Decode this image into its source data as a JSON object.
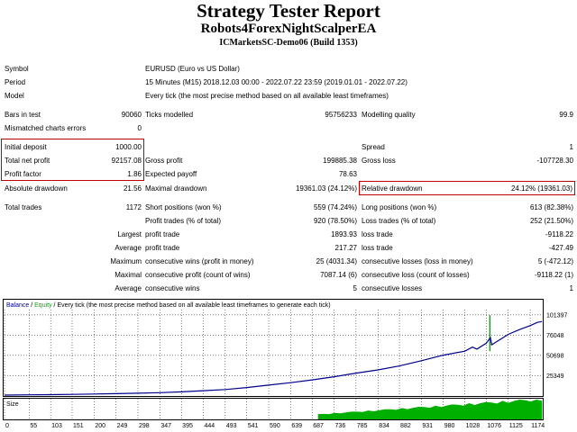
{
  "header": {
    "title": "Strategy Tester Report",
    "ea_name": "Robots4ForexNightScalperEA",
    "account": "ICMarketsSC-Demo06 (Build 1353)"
  },
  "info": {
    "symbol_label": "Symbol",
    "symbol_value": "EURUSD (Euro vs US Dollar)",
    "period_label": "Period",
    "period_value": "15 Minutes (M15) 2018.12.03 00:00 - 2022.07.22 23:59 (2019.01.01 - 2022.07.22)",
    "model_label": "Model",
    "model_value": "Every tick (the most precise method based on all available least timeframes)",
    "bars_label": "Bars in test",
    "bars_value": "90060",
    "ticks_label": "Ticks modelled",
    "ticks_value": "95756233",
    "quality_label": "Modelling quality",
    "quality_value": "99.9",
    "mismatch_label": "Mismatched charts errors",
    "mismatch_value": "0"
  },
  "results": {
    "deposit_label": "Initial deposit",
    "deposit_value": "1000.00",
    "spread_label": "Spread",
    "spread_value": "1",
    "netprofit_label": "Total net profit",
    "netprofit_value": "92157.08",
    "grossprofit_label": "Gross profit",
    "grossprofit_value": "199885.38",
    "grossloss_label": "Gross loss",
    "grossloss_value": "-107728.30",
    "pf_label": "Profit factor",
    "pf_value": "1.86",
    "payoff_label": "Expected payoff",
    "payoff_value": "78.63",
    "absdd_label": "Absolute drawdown",
    "absdd_value": "21.56",
    "maxdd_label": "Maximal drawdown",
    "maxdd_value": "19361.03 (24.12%)",
    "reldd_label": "Relative drawdown",
    "reldd_value": "24.12% (19361.03)"
  },
  "trades": {
    "total_label": "Total trades",
    "total_value": "1172",
    "short_label": "Short positions (won %)",
    "short_value": "559 (74.24%)",
    "long_label": "Long positions (won %)",
    "long_value": "613 (82.38%)",
    "profit_trades_label": "Profit trades (% of total)",
    "profit_trades_value": "920 (78.50%)",
    "loss_trades_label": "Loss trades (% of total)",
    "loss_trades_value": "252 (21.50%)",
    "largest_prefix": "Largest",
    "largest_profit_label": "profit trade",
    "largest_profit_value": "1893.93",
    "largest_loss_label": "loss trade",
    "largest_loss_value": "-9118.22",
    "average_prefix": "Average",
    "average_profit_label": "profit trade",
    "average_profit_value": "217.27",
    "average_loss_label": "loss trade",
    "average_loss_value": "-427.49",
    "maximum_prefix": "Maximum",
    "max_wins_label": "consecutive wins (profit in money)",
    "max_wins_value": "25 (4031.34)",
    "max_losses_label": "consecutive losses (loss in money)",
    "max_losses_value": "5 (-472.12)",
    "maximal_prefix": "Maximal",
    "maxl_profit_label": "consecutive profit (count of wins)",
    "maxl_profit_value": "7087.14 (6)",
    "maxl_loss_label": "consecutive loss (count of losses)",
    "maxl_loss_value": "-9118.22 (1)",
    "avg2_prefix": "Average",
    "avg_wins_label": "consecutive wins",
    "avg_wins_value": "5",
    "avg_losses_label": "consecutive losses",
    "avg_losses_value": "1"
  },
  "chart_data": {
    "type": "line",
    "legend": {
      "balance": "Balance",
      "sep1": " / ",
      "equity": "Equity",
      "sep2": " / ",
      "note": "Every tick (the most precise method based on all available least timeframes to generate each tick)"
    },
    "colors": {
      "balance": "#00008b",
      "equity": "#00b000",
      "size": "#00b000",
      "label": "#000000",
      "grid": "#000000"
    },
    "ylim": [
      1000,
      108000
    ],
    "yticks": [
      101397,
      76048,
      50698,
      25349
    ],
    "xlim": [
      0,
      1200
    ],
    "xticks": [
      0,
      55,
      103,
      151,
      200,
      249,
      298,
      347,
      395,
      444,
      493,
      541,
      590,
      639,
      687,
      736,
      785,
      834,
      882,
      931,
      980,
      1028,
      1076,
      1125,
      1174
    ],
    "balance": [
      {
        "x": 0,
        "y": 1000
      },
      {
        "x": 55,
        "y": 1300
      },
      {
        "x": 103,
        "y": 1600
      },
      {
        "x": 151,
        "y": 1900
      },
      {
        "x": 200,
        "y": 2300
      },
      {
        "x": 249,
        "y": 2800
      },
      {
        "x": 298,
        "y": 3400
      },
      {
        "x": 347,
        "y": 4000
      },
      {
        "x": 395,
        "y": 5000
      },
      {
        "x": 444,
        "y": 6500
      },
      {
        "x": 493,
        "y": 8000
      },
      {
        "x": 541,
        "y": 10500
      },
      {
        "x": 590,
        "y": 13500
      },
      {
        "x": 639,
        "y": 16500
      },
      {
        "x": 687,
        "y": 20000
      },
      {
        "x": 736,
        "y": 24000
      },
      {
        "x": 785,
        "y": 28500
      },
      {
        "x": 834,
        "y": 32500
      },
      {
        "x": 882,
        "y": 37500
      },
      {
        "x": 931,
        "y": 44000
      },
      {
        "x": 980,
        "y": 51000
      },
      {
        "x": 1028,
        "y": 56000
      },
      {
        "x": 1045,
        "y": 61000
      },
      {
        "x": 1055,
        "y": 58500
      },
      {
        "x": 1076,
        "y": 66000
      },
      {
        "x": 1085,
        "y": 73000
      },
      {
        "x": 1088,
        "y": 64000
      },
      {
        "x": 1125,
        "y": 77000
      },
      {
        "x": 1150,
        "y": 83000
      },
      {
        "x": 1174,
        "y": 88000
      },
      {
        "x": 1190,
        "y": 92000
      },
      {
        "x": 1200,
        "y": 93000
      }
    ],
    "equity_spike": {
      "x": 1084,
      "y_low": 56000,
      "y_high": 101000
    },
    "size_label": "Size",
    "size": {
      "start_x": 700,
      "end_x": 1200,
      "start_level": 0.25,
      "end_level": 1.0
    }
  }
}
